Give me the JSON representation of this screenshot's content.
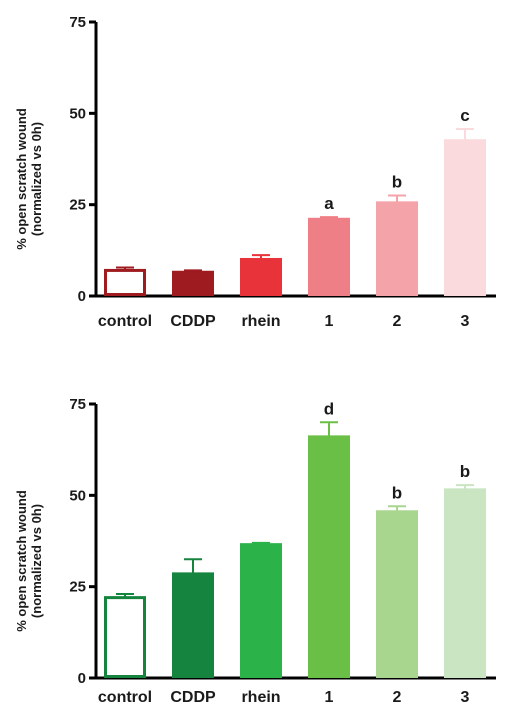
{
  "chart_data": [
    {
      "type": "bar",
      "categories": [
        "control",
        "CDDP",
        "rhein",
        "1",
        "2",
        "3"
      ],
      "values": [
        7,
        6.5,
        10,
        21,
        25.5,
        42.5
      ],
      "errors": [
        0.8,
        0.5,
        1.2,
        0.6,
        2.0,
        3.2
      ],
      "significance": [
        "",
        "",
        "",
        "a",
        "b",
        "c"
      ],
      "colors": [
        "#ffffff",
        "#9e1b20",
        "#e8333b",
        "#ef7f86",
        "#f4a3a9",
        "#fadadd"
      ],
      "edge_colors": [
        "#9e1b20",
        "#9e1b20",
        "#e8333b",
        "#ef7f86",
        "#f4a3a9",
        "#fadadd"
      ],
      "ylabel_line1": "% open scratch wound",
      "ylabel_line2": "(normalized vs 0h)",
      "ylim": [
        0,
        75
      ],
      "yticks": [
        0,
        25,
        50,
        75
      ]
    },
    {
      "type": "bar",
      "categories": [
        "control",
        "CDDP",
        "rhein",
        "1",
        "2",
        "3"
      ],
      "values": [
        22,
        28.5,
        36.5,
        66,
        45.5,
        51.5
      ],
      "errors": [
        1.0,
        4.0,
        0.5,
        4.0,
        1.5,
        1.3
      ],
      "significance": [
        "",
        "",
        "",
        "d",
        "b",
        "b"
      ],
      "colors": [
        "#ffffff",
        "#15843f",
        "#2bb34a",
        "#6ac046",
        "#a8d68f",
        "#cae5c1"
      ],
      "edge_colors": [
        "#15843f",
        "#15843f",
        "#2bb34a",
        "#6ac046",
        "#a8d68f",
        "#cae5c1"
      ],
      "ylabel_line1": "% open scratch wound",
      "ylabel_line2": "(normalized vs 0h)",
      "ylim": [
        0,
        75
      ],
      "yticks": [
        0,
        25,
        50,
        75
      ]
    }
  ]
}
